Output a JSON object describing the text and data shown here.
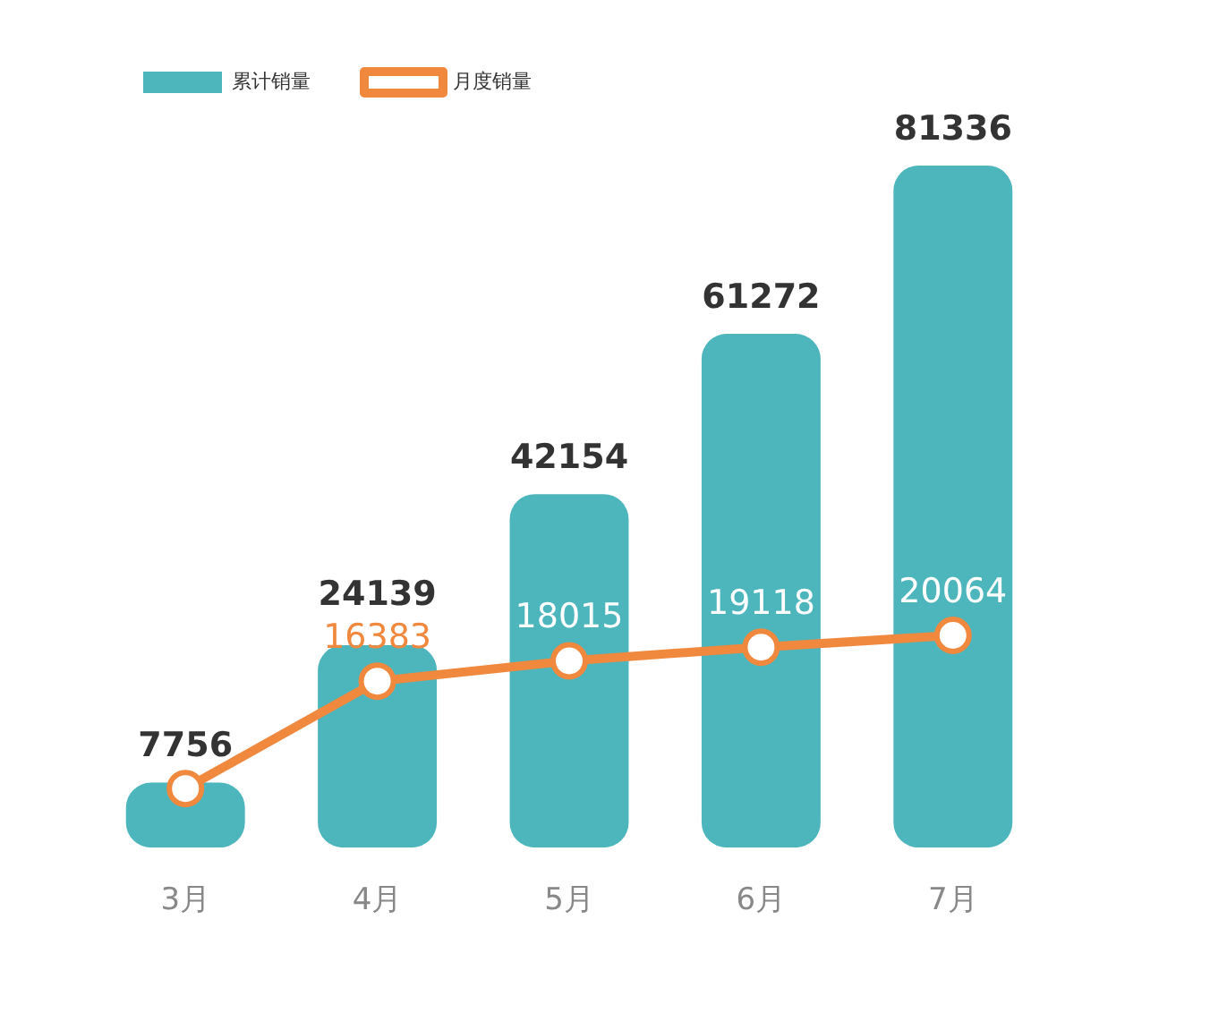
{
  "chart_data": {
    "type": "bar",
    "categories": [
      "3月",
      "4月",
      "5月",
      "6月",
      "7月"
    ],
    "legend": "top left",
    "tick_labels": "x",
    "grid": false,
    "series": [
      {
        "name": "累计销量",
        "color": "#4db6bc",
        "values": [
          7756,
          24139,
          42154,
          61272,
          81336
        ],
        "value_labels": [
          "7756",
          "24139",
          "42154",
          "61272",
          "81336"
        ]
      },
      {
        "name": "月度销量",
        "type": "line",
        "axis": "y2",
        "color": "#f0883e",
        "marker": "circle",
        "values": [
          7756,
          16383,
          18015,
          19118,
          20064
        ],
        "value_labels": [
          null,
          "16383",
          "18015",
          "19118",
          "20064"
        ]
      }
    ]
  }
}
